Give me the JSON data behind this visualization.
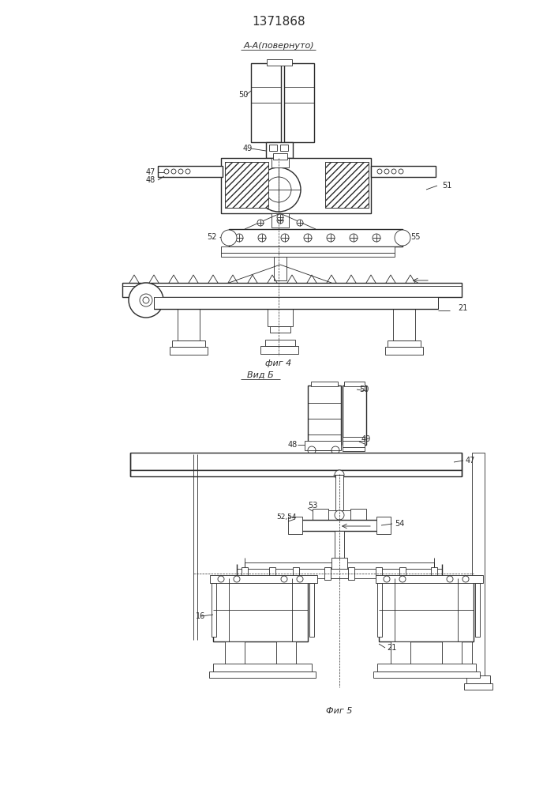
{
  "title": "1371868",
  "fig4_label": "А-А(повернуто)",
  "fig4_caption": "фиг 4",
  "fig5_caption": "Фиг 5",
  "fig5_label": "Вид Б",
  "bg_color": "#ffffff",
  "line_color": "#2a2a2a"
}
